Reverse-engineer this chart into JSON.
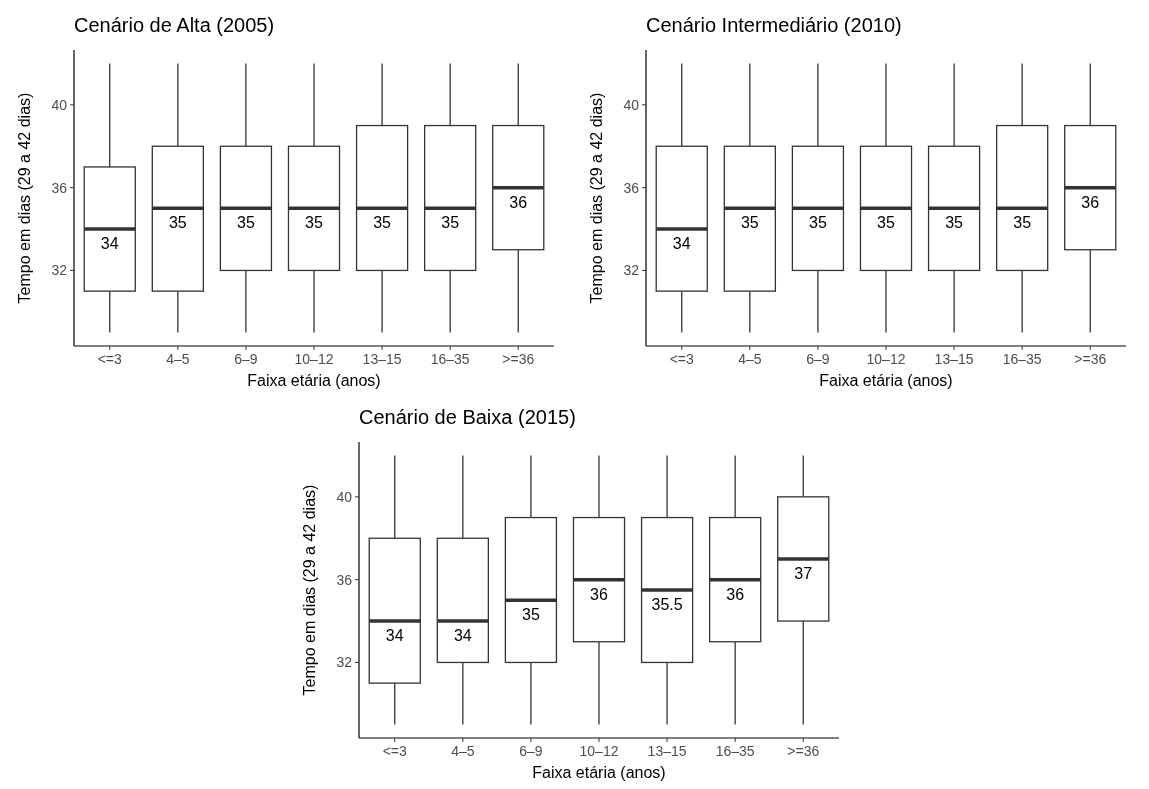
{
  "chart_data": [
    {
      "type": "box",
      "title": "Cenário de Alta (2005)",
      "xlabel": "Faixa etária (anos)",
      "ylabel": "Tempo em dias (29 a 42 dias)",
      "categories": [
        "<=3",
        "4–5",
        "6–9",
        "10–12",
        "13–15",
        "16–35",
        ">=36"
      ],
      "ylim": [
        28.35,
        42.65
      ],
      "yticks": [
        32,
        36,
        40
      ],
      "grid": false,
      "value_labels": [
        "34",
        "35",
        "35",
        "35",
        "35",
        "35",
        "36"
      ],
      "boxes": [
        {
          "low": 29,
          "q1": 31,
          "median": 34,
          "q3": 37,
          "high": 42
        },
        {
          "low": 29,
          "q1": 31,
          "median": 35,
          "q3": 38,
          "high": 42
        },
        {
          "low": 29,
          "q1": 32,
          "median": 35,
          "q3": 38,
          "high": 42
        },
        {
          "low": 29,
          "q1": 32,
          "median": 35,
          "q3": 38,
          "high": 42
        },
        {
          "low": 29,
          "q1": 32,
          "median": 35,
          "q3": 39,
          "high": 42
        },
        {
          "low": 29,
          "q1": 32,
          "median": 35,
          "q3": 39,
          "high": 42
        },
        {
          "low": 29,
          "q1": 33,
          "median": 36,
          "q3": 39,
          "high": 42
        }
      ]
    },
    {
      "type": "box",
      "title": "Cenário Intermediário (2010)",
      "xlabel": "Faixa etária (anos)",
      "ylabel": "Tempo em dias (29 a 42 dias)",
      "categories": [
        "<=3",
        "4–5",
        "6–9",
        "10–12",
        "13–15",
        "16–35",
        ">=36"
      ],
      "ylim": [
        28.35,
        42.65
      ],
      "yticks": [
        32,
        36,
        40
      ],
      "grid": false,
      "value_labels": [
        "34",
        "35",
        "35",
        "35",
        "35",
        "35",
        "36"
      ],
      "boxes": [
        {
          "low": 29,
          "q1": 31,
          "median": 34,
          "q3": 38,
          "high": 42
        },
        {
          "low": 29,
          "q1": 31,
          "median": 35,
          "q3": 38,
          "high": 42
        },
        {
          "low": 29,
          "q1": 32,
          "median": 35,
          "q3": 38,
          "high": 42
        },
        {
          "low": 29,
          "q1": 32,
          "median": 35,
          "q3": 38,
          "high": 42
        },
        {
          "low": 29,
          "q1": 32,
          "median": 35,
          "q3": 38,
          "high": 42
        },
        {
          "low": 29,
          "q1": 32,
          "median": 35,
          "q3": 39,
          "high": 42
        },
        {
          "low": 29,
          "q1": 33,
          "median": 36,
          "q3": 39,
          "high": 42
        }
      ]
    },
    {
      "type": "box",
      "title": "Cenário de Baixa (2015)",
      "xlabel": "Faixa etária (anos)",
      "ylabel": "Tempo em dias (29 a 42 dias)",
      "categories": [
        "<=3",
        "4–5",
        "6–9",
        "10–12",
        "13–15",
        "16–35",
        ">=36"
      ],
      "ylim": [
        28.35,
        42.65
      ],
      "yticks": [
        32,
        36,
        40
      ],
      "grid": false,
      "value_labels": [
        "34",
        "34",
        "35",
        "36",
        "35.5",
        "36",
        "37"
      ],
      "boxes": [
        {
          "low": 29,
          "q1": 31,
          "median": 34,
          "q3": 38,
          "high": 42
        },
        {
          "low": 29,
          "q1": 32,
          "median": 34,
          "q3": 38,
          "high": 42
        },
        {
          "low": 29,
          "q1": 32,
          "median": 35,
          "q3": 39,
          "high": 42
        },
        {
          "low": 29,
          "q1": 33,
          "median": 36,
          "q3": 39,
          "high": 42
        },
        {
          "low": 29,
          "q1": 32,
          "median": 35.5,
          "q3": 39,
          "high": 42
        },
        {
          "low": 29,
          "q1": 33,
          "median": 36,
          "q3": 39,
          "high": 42
        },
        {
          "low": 29,
          "q1": 34,
          "median": 37,
          "q3": 40,
          "high": 42
        }
      ]
    }
  ]
}
